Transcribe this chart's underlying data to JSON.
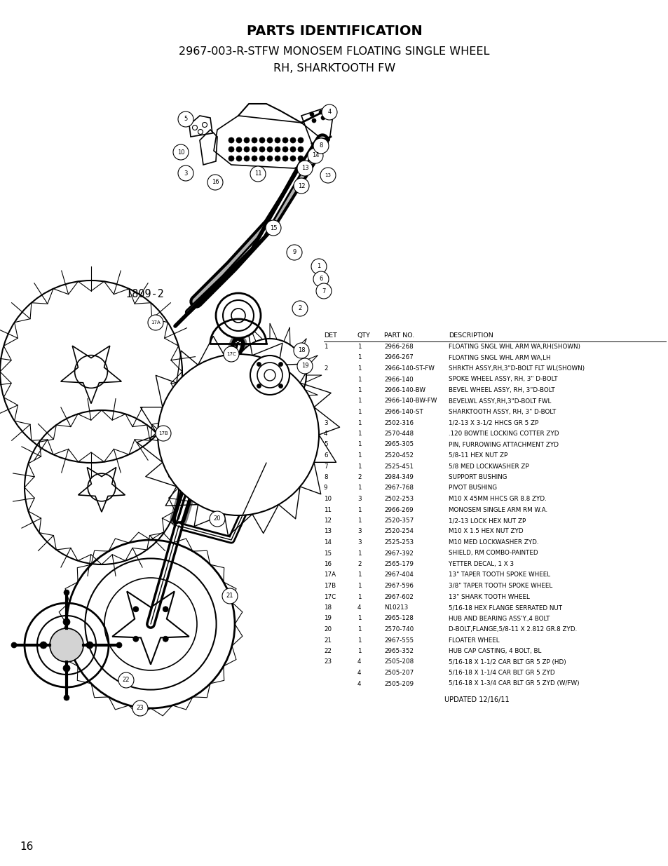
{
  "title_line1": "PARTS IDENTIFICATION",
  "title_line2": "2967-003-R-STFW MONOSEM FLOATING SINGLE WHEEL",
  "title_line3": "RH, SHARKTOOTH FW",
  "diagram_label": "I809-2",
  "page_number": "16",
  "updated": "UPDATED 12/16/11",
  "table_headers": [
    "DET",
    "QTY",
    "PART NO.",
    "DESCRIPTION"
  ],
  "table_rows": [
    [
      "1",
      "1",
      "2966-268",
      "FLOATING SNGL WHL ARM WA,RH(SHOWN)"
    ],
    [
      "",
      "1",
      "2966-267",
      "FLOATING SNGL WHL ARM WA,LH"
    ],
    [
      "2",
      "1",
      "2966-140-ST-FW",
      "SHRKTH ASSY,RH,3\"D-BOLT FLT WL(SHOWN)"
    ],
    [
      "",
      "1",
      "2966-140",
      "SPOKE WHEEL ASSY, RH, 3\" D-BOLT"
    ],
    [
      "",
      "1",
      "2966-140-BW",
      "BEVEL WHEEL ASSY, RH, 3\"D-BOLT"
    ],
    [
      "",
      "1",
      "2966-140-BW-FW",
      "BEVELWL ASSY,RH,3\"D-BOLT FWL"
    ],
    [
      "",
      "1",
      "2966-140-ST",
      "SHARKTOOTH ASSY, RH, 3\" D-BOLT"
    ],
    [
      "3",
      "1",
      "2502-316",
      "1/2-13 X 3-1/2 HHCS GR 5 ZP"
    ],
    [
      "4",
      "1",
      "2570-448",
      ".120 BOWTIE LOCKING COTTER ZYD"
    ],
    [
      "5",
      "1",
      "2965-305",
      "PIN, FURROWING ATTACHMENT ZYD"
    ],
    [
      "6",
      "1",
      "2520-452",
      "5/8-11 HEX NUT ZP"
    ],
    [
      "7",
      "1",
      "2525-451",
      "5/8 MED LOCKWASHER ZP"
    ],
    [
      "8",
      "2",
      "2984-349",
      "SUPPORT BUSHING"
    ],
    [
      "9",
      "1",
      "2967-768",
      "PIVOT BUSHING"
    ],
    [
      "10",
      "3",
      "2502-253",
      "M10 X 45MM HHCS GR 8.8 ZYD."
    ],
    [
      "11",
      "1",
      "2966-269",
      "MONOSEM SINGLE ARM RM W.A."
    ],
    [
      "12",
      "1",
      "2520-357",
      "1/2-13 LOCK HEX NUT ZP"
    ],
    [
      "13",
      "3",
      "2520-254",
      "M10 X 1.5 HEX NUT ZYD"
    ],
    [
      "14",
      "3",
      "2525-253",
      "M10 MED LOCKWASHER ZYD."
    ],
    [
      "15",
      "1",
      "2967-392",
      "SHIELD, RM COMBO-PAINTED"
    ],
    [
      "16",
      "2",
      "2565-179",
      "YETTER DECAL, 1 X 3"
    ],
    [
      "17A",
      "1",
      "2967-404",
      "13\" TAPER TOOTH SPOKE WHEEL"
    ],
    [
      "17B",
      "1",
      "2967-596",
      "3/8\" TAPER TOOTH SPOKE WHEEL"
    ],
    [
      "17C",
      "1",
      "2967-602",
      "13\" SHARK TOOTH WHEEL"
    ],
    [
      "18",
      "4",
      "N10213",
      "5/16-18 HEX FLANGE SERRATED NUT"
    ],
    [
      "19",
      "1",
      "2965-128",
      "HUB AND BEARING ASS'Y.,4 BOLT"
    ],
    [
      "20",
      "1",
      "2570-740",
      "D-BOLT,FLANGE,5/8-11 X 2.812 GR.8 ZYD."
    ],
    [
      "21",
      "1",
      "2967-555",
      "FLOATER WHEEL"
    ],
    [
      "22",
      "1",
      "2965-352",
      "HUB CAP CASTING, 4 BOLT, BL"
    ],
    [
      "23",
      "4",
      "2505-208",
      "5/16-18 X 1-1/2 CAR BLT GR 5 ZP (HD)"
    ],
    [
      "",
      "4",
      "2505-207",
      "5/16-18 X 1-1/4 CAR BLT GR 5 ZYD"
    ],
    [
      "",
      "4",
      "2505-209",
      "5/16-18 X 1-3/4 CAR BLT GR 5 ZYD (W/FW)"
    ]
  ],
  "bg_color": "#ffffff",
  "text_color": "#000000"
}
